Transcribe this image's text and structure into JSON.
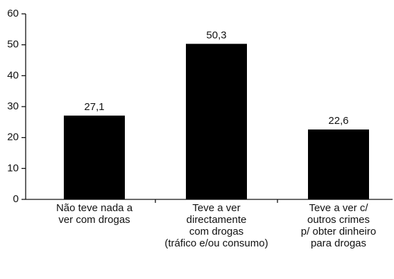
{
  "chart_data": {
    "type": "bar",
    "categories": [
      [
        "Não teve nada a",
        "ver com drogas"
      ],
      [
        "Teve a ver",
        "directamente",
        "com drogas",
        "(tráfico e/ou consumo)"
      ],
      [
        "Teve a ver c/",
        "outros crimes",
        "p/ obter dinheiro",
        "para drogas"
      ]
    ],
    "values": [
      27.1,
      50.3,
      22.6
    ],
    "value_labels": [
      "27,1",
      "50,3",
      "22,6"
    ],
    "color": "#000000",
    "ylim": [
      0,
      60
    ],
    "yticks": [
      0,
      10,
      20,
      30,
      40,
      50,
      60
    ],
    "grid": false
  }
}
